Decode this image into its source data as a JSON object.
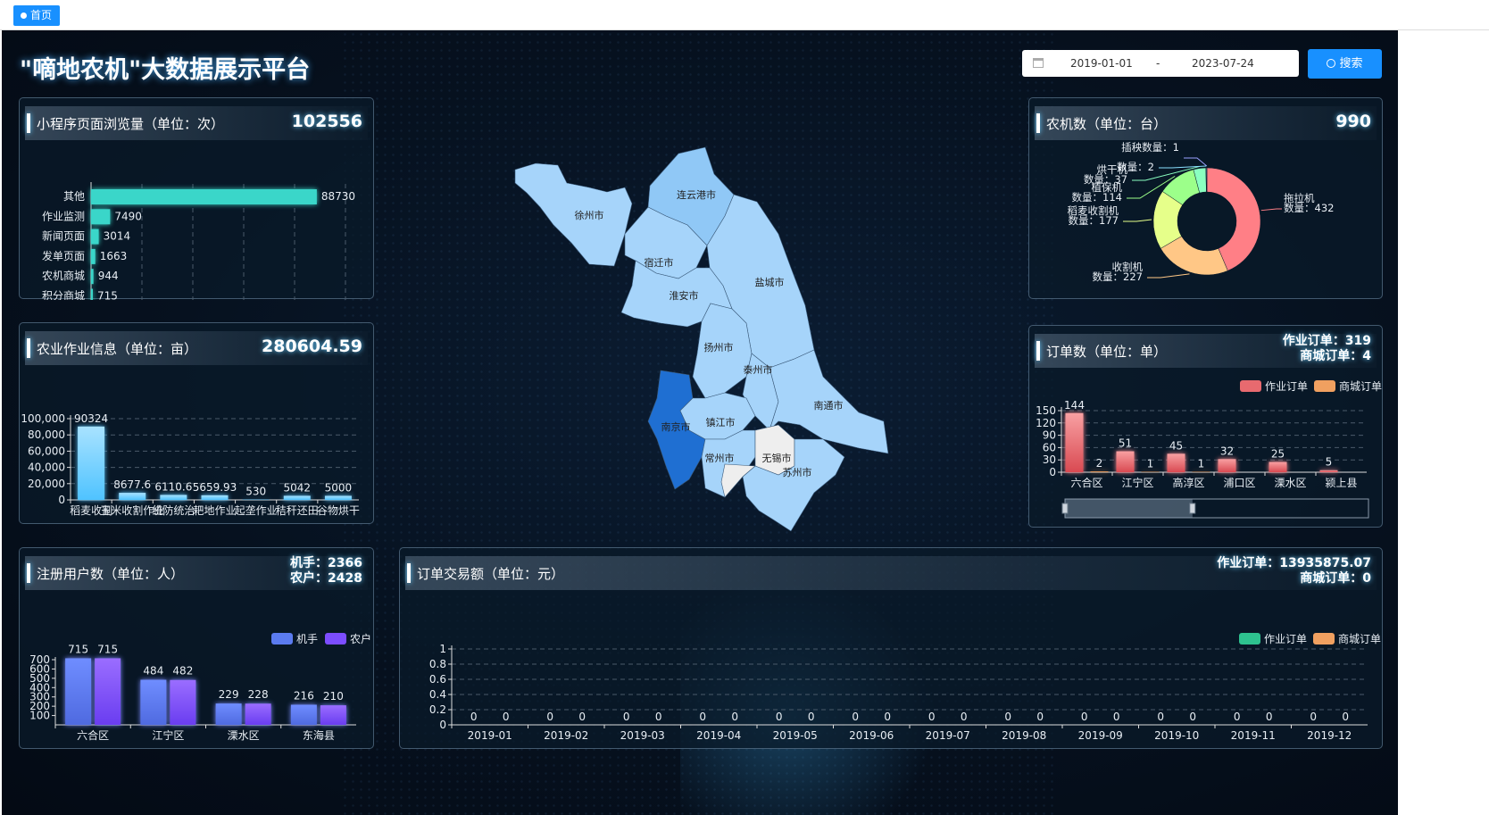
{
  "tab": {
    "label": "首页"
  },
  "title": "\"嘀地农机\"大数据展示平台",
  "date_range": {
    "start": "2019-01-01",
    "separator": "-",
    "end": "2023-07-24"
  },
  "search_label": "搜索",
  "colors": {
    "accent": "#1890ff",
    "teal": "#3ad6c9",
    "cyan": "#5cc8ff",
    "order_red": "#e86a6f",
    "order_orange": "#f0a060",
    "user_blue": "#5b7bef",
    "user_purple": "#7c4dff",
    "green": "#2ec28f"
  },
  "panels": {
    "pageviews": {
      "title": "小程序页面浏览量（单位：次）",
      "total": "102556"
    },
    "agri": {
      "title": "农业作业信息（单位：亩）",
      "total": "280604.59"
    },
    "users": {
      "title": "注册用户数（单位：人）",
      "line1": "机手：2366",
      "line2": "农户：2428"
    },
    "machines": {
      "title": "农机数（单位：台）",
      "total": "990"
    },
    "orders": {
      "title": "订单数（单位：单）",
      "line1": "作业订单：319",
      "line2": "商城订单：4"
    },
    "amount": {
      "title": "订单交易额（单位：元）",
      "line1": "作业订单：13935875.07",
      "line2": "商城订单：0"
    }
  },
  "map": {
    "cities": [
      "徐州市",
      "连云港市",
      "宿迁市",
      "盐城市",
      "淮安市",
      "扬州市",
      "泰州市",
      "南通市",
      "南京市",
      "镇江市",
      "常州市",
      "无锡市",
      "苏州市"
    ]
  },
  "chart_data": [
    {
      "id": "pageviews",
      "type": "bar",
      "orientation": "horizontal",
      "categories": [
        "其他",
        "作业监测",
        "新闻页面",
        "发单页面",
        "农机商城",
        "积分商城"
      ],
      "values": [
        88730,
        7490,
        3014,
        1663,
        944,
        715
      ],
      "xlim": [
        0,
        100000
      ],
      "xticks": [
        "0",
        "20,000",
        "40,000",
        "60,000",
        "80,000",
        "100,000"
      ],
      "grid": false
    },
    {
      "id": "agri",
      "type": "bar",
      "categories": [
        "稻麦收割",
        "玉米收割作业",
        "统防统治",
        "耙地作业",
        "起垄作业",
        "秸秆还田",
        "谷物烘干"
      ],
      "values": [
        90324,
        8677.6,
        6110.6,
        5659.93,
        530,
        5042,
        5000
      ],
      "ylim": [
        0,
        100000
      ],
      "yticks": [
        "0",
        "20,000",
        "40,000",
        "60,000",
        "80,000",
        "100,000"
      ],
      "grid": true,
      "datazoom": [
        0,
        0.31
      ]
    },
    {
      "id": "users",
      "type": "bar",
      "categories": [
        "六合区",
        "江宁区",
        "溧水区",
        "东海县"
      ],
      "series": [
        {
          "name": "机手",
          "values": [
            715,
            484,
            229,
            216
          ]
        },
        {
          "name": "农户",
          "values": [
            715,
            482,
            228,
            210
          ]
        }
      ],
      "ylim": [
        0,
        700
      ],
      "yticks": [
        "100",
        "200",
        "300",
        "400",
        "500",
        "600",
        "700"
      ],
      "legend": "top-right",
      "datazoom": [
        0,
        0.03
      ]
    },
    {
      "id": "machines",
      "type": "pie",
      "donut": true,
      "slices": [
        {
          "name": "拖拉机",
          "value": 432,
          "label": [
            "拖拉机",
            "数量：432"
          ]
        },
        {
          "name": "收割机",
          "value": 227,
          "label": [
            "收割机",
            "数量：227"
          ]
        },
        {
          "name": "稻麦收割机",
          "value": 177,
          "label": [
            "稻麦收割机",
            "数量：177"
          ]
        },
        {
          "name": "植保机",
          "value": 114,
          "label": [
            "植保机",
            "数量：114"
          ]
        },
        {
          "name": "烘干机",
          "value": 37,
          "label": [
            "烘干机",
            "数量：37"
          ]
        },
        {
          "name": "",
          "value": 2,
          "label": [
            "",
            "数量：2"
          ]
        },
        {
          "name": "插秧机",
          "value": 1,
          "label": [
            "插秧数量：1",
            ""
          ]
        }
      ],
      "colors": [
        "#ff7f86",
        "#ffc786",
        "#e6ff8a",
        "#9cff8a",
        "#8affc0",
        "#8ae0ff",
        "#9aa0ff"
      ]
    },
    {
      "id": "orders",
      "type": "bar",
      "categories": [
        "六合区",
        "江宁区",
        "高淳区",
        "浦口区",
        "溧水区",
        "颍上县"
      ],
      "series": [
        {
          "name": "作业订单",
          "values": [
            144,
            51,
            45,
            32,
            25,
            5
          ]
        },
        {
          "name": "商城订单",
          "values": [
            2,
            1,
            1,
            null,
            null,
            null
          ]
        }
      ],
      "ylim": [
        0,
        150
      ],
      "yticks": [
        "0",
        "30",
        "60",
        "90",
        "120",
        "150"
      ],
      "legend": "top-right",
      "datazoom": [
        0,
        0.42
      ]
    },
    {
      "id": "amount",
      "type": "bar",
      "categories": [
        "2019-01",
        "2019-02",
        "2019-03",
        "2019-04",
        "2019-05",
        "2019-06",
        "2019-07",
        "2019-08",
        "2019-09",
        "2019-10",
        "2019-11",
        "2019-12"
      ],
      "series": [
        {
          "name": "作业订单",
          "values": [
            0,
            0,
            0,
            0,
            0,
            0,
            0,
            0,
            0,
            0,
            0,
            0
          ]
        },
        {
          "name": "商城订单",
          "values": [
            0,
            0,
            0,
            0,
            0,
            0,
            0,
            0,
            0,
            0,
            0,
            0
          ]
        }
      ],
      "ylim": [
        0,
        1
      ],
      "yticks": [
        "0",
        "0.2",
        "0.4",
        "0.6",
        "0.8",
        "1"
      ],
      "legend": "top-right",
      "datazoom": [
        0,
        0.21
      ]
    }
  ]
}
